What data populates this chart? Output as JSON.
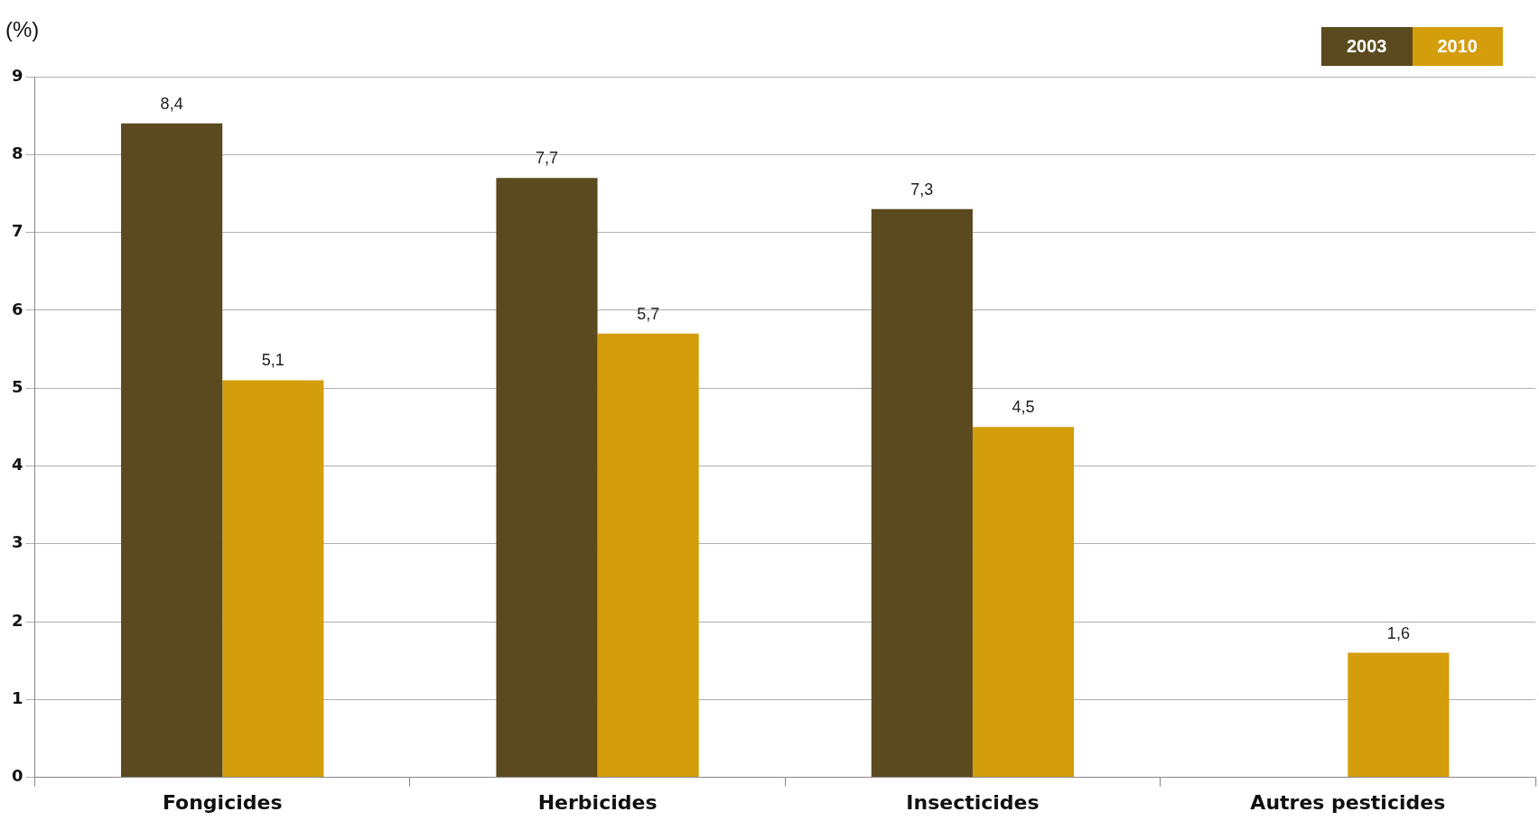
{
  "chart_data": {
    "type": "bar",
    "ylabel": "(%)",
    "categories": [
      "Fongicides",
      "Herbicides",
      "Insecticides",
      "Autres pesticides"
    ],
    "series": [
      {
        "name": "2003",
        "color": "#5b4a1f",
        "values": [
          8.4,
          7.7,
          7.3,
          null
        ],
        "value_labels": [
          "8,4",
          "7,7",
          "7,3",
          null
        ]
      },
      {
        "name": "2010",
        "color": "#d39d0c",
        "values": [
          5.1,
          5.7,
          4.5,
          1.6
        ],
        "value_labels": [
          "5,1",
          "5,7",
          "4,5",
          "1,6"
        ]
      }
    ],
    "ylim": [
      0,
      9
    ],
    "yticks": [
      0,
      1,
      2,
      3,
      4,
      5,
      6,
      7,
      8,
      9
    ],
    "grid": "y",
    "legend": "top right"
  }
}
